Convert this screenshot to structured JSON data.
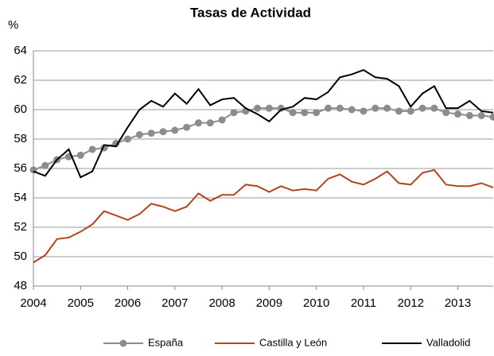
{
  "chart_data": {
    "type": "line",
    "title": "Tasas de Actividad",
    "y_label": "%",
    "x": [
      2004,
      2004.25,
      2004.5,
      2004.75,
      2005,
      2005.25,
      2005.5,
      2005.75,
      2006,
      2006.25,
      2006.5,
      2006.75,
      2007,
      2007.25,
      2007.5,
      2007.75,
      2008,
      2008.25,
      2008.5,
      2008.75,
      2009,
      2009.25,
      2009.5,
      2009.75,
      2010,
      2010.25,
      2010.5,
      2010.75,
      2011,
      2011.25,
      2011.5,
      2011.75,
      2012,
      2012.25,
      2012.5,
      2012.75,
      2013,
      2013.25,
      2013.5,
      2013.75
    ],
    "series": [
      {
        "name": "España",
        "color": "#8c8c8c",
        "marker": true,
        "values": [
          55.9,
          56.2,
          56.6,
          56.8,
          56.9,
          57.3,
          57.4,
          57.7,
          58.0,
          58.3,
          58.4,
          58.5,
          58.6,
          58.8,
          59.1,
          59.1,
          59.3,
          59.8,
          59.9,
          60.1,
          60.1,
          60.1,
          59.8,
          59.8,
          59.8,
          60.1,
          60.1,
          60.0,
          59.9,
          60.1,
          60.1,
          59.9,
          59.9,
          60.1,
          60.1,
          59.8,
          59.7,
          59.6,
          59.6,
          59.5
        ]
      },
      {
        "name": "Castilla y León",
        "color": "#b5441a",
        "marker": false,
        "values": [
          49.6,
          50.1,
          51.2,
          51.3,
          51.7,
          52.2,
          53.1,
          52.8,
          52.5,
          52.9,
          53.6,
          53.4,
          53.1,
          53.4,
          54.3,
          53.8,
          54.2,
          54.2,
          54.9,
          54.8,
          54.4,
          54.8,
          54.5,
          54.6,
          54.5,
          55.3,
          55.6,
          55.1,
          54.9,
          55.3,
          55.8,
          55.0,
          54.9,
          55.7,
          55.9,
          54.9,
          54.8,
          54.8,
          55.0,
          54.7
        ]
      },
      {
        "name": "Valladolid",
        "color": "#000000",
        "marker": false,
        "values": [
          55.8,
          55.5,
          56.6,
          57.3,
          55.4,
          55.8,
          57.6,
          57.5,
          58.8,
          60.0,
          60.6,
          60.2,
          61.1,
          60.4,
          61.4,
          60.3,
          60.7,
          60.8,
          60.1,
          59.7,
          59.2,
          60.0,
          60.2,
          60.8,
          60.7,
          61.2,
          62.2,
          62.4,
          62.7,
          62.2,
          62.1,
          61.6,
          60.2,
          61.1,
          61.6,
          60.1,
          60.1,
          60.6,
          59.9,
          59.8
        ]
      }
    ],
    "xlim": [
      2004,
      2013.75
    ],
    "xticks": [
      2004,
      2005,
      2006,
      2007,
      2008,
      2009,
      2010,
      2011,
      2012,
      2013
    ],
    "ylim": [
      48,
      64
    ],
    "yticks": [
      48,
      50,
      52,
      54,
      56,
      58,
      60,
      62,
      64
    ],
    "grid": true,
    "legend": "bottom"
  }
}
